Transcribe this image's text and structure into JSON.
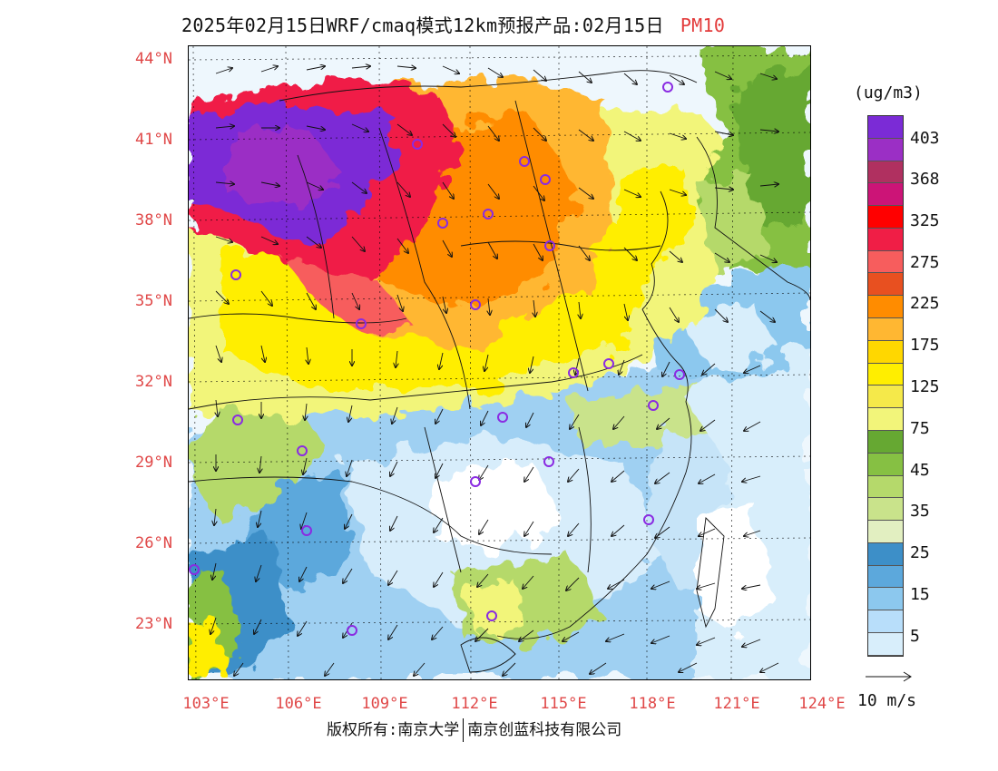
{
  "title": {
    "main": "2025年02月15日WRF/cmaq模式12km预报产品:02月15日",
    "pollutant": "PM10"
  },
  "axes": {
    "lat_labels": [
      "44°N",
      "41°N",
      "38°N",
      "35°N",
      "32°N",
      "29°N",
      "26°N",
      "23°N"
    ],
    "lon_labels": [
      "103°E",
      "106°E",
      "109°E",
      "112°E",
      "115°E",
      "118°E",
      "121°E",
      "124°E"
    ]
  },
  "colorbar": {
    "unit": "(ug/m3)",
    "labels": [
      "403",
      "368",
      "325",
      "275",
      "225",
      "175",
      "125",
      "75",
      "45",
      "35",
      "25",
      "15",
      "5"
    ],
    "colors": [
      "#7b2bd6",
      "#9b2fc5",
      "#b03060",
      "#cc1477",
      "#ff0000",
      "#f01e46",
      "#f75d5d",
      "#e85020",
      "#ff8c00",
      "#ffb732",
      "#ffd700",
      "#ffee00",
      "#f5e94a",
      "#f2f57a",
      "#66a832",
      "#86c043",
      "#b5d96b",
      "#c9e38b",
      "#e2efc1",
      "#3d8fc8",
      "#5ca8dc",
      "#8cc8ee",
      "#b8defa",
      "#d8eefb"
    ]
  },
  "reference_vector": {
    "label": "10 m/s"
  },
  "footer": {
    "left": "版权所有:南京大学",
    "right": "南京创蓝科技有限公司"
  },
  "colors": {
    "axis_label": "#e04848",
    "pollutant_label": "#e33b3b"
  }
}
